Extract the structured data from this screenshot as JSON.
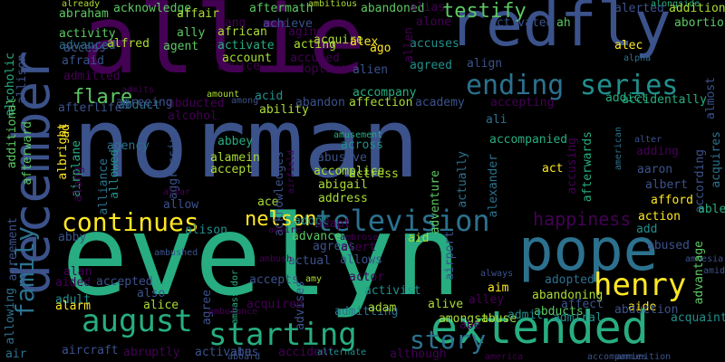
{
  "palette": {
    "background": "#000000",
    "dark_purple": "#440154",
    "purple": "#472c7a",
    "indigo": "#3b528b",
    "blue": "#2c718e",
    "teal": "#21908d",
    "sea_green": "#27ad81",
    "green": "#5cc863",
    "lime": "#aadc32",
    "yellow": "#fde725"
  },
  "words": [
    "allie",
    "norman",
    "evelyn",
    "redfly",
    "pope",
    "december",
    "extended",
    "august",
    "starting",
    "television",
    "ending",
    "series",
    "henry",
    "continues",
    "family",
    "nelson",
    "happiness",
    "story",
    "testify",
    "flare",
    "abandoned",
    "acknowledge",
    "aftermath",
    "abraham",
    "affair",
    "aang",
    "achieve",
    "african",
    "activity",
    "advanced",
    "ally",
    "aging",
    "acquire",
    "accuses",
    "alias",
    "alone",
    "activated",
    "ah",
    "abortion",
    "alerted",
    "alongside",
    "addition",
    "ambitious",
    "already",
    "allen",
    "alcoholic",
    "allison",
    "access",
    "alfred",
    "agent",
    "activate",
    "acting",
    "alex",
    "ago",
    "alec",
    "alpha",
    "almost",
    "afraid",
    "account",
    "accused",
    "alien",
    "agreed",
    "align",
    "addict",
    "accidentally",
    "admitted",
    "adoptive",
    "advice",
    "abduct",
    "admits",
    "abducted",
    "agreeing",
    "alcohol",
    "acid",
    "among",
    "amount",
    "ability",
    "afterlife",
    "additional",
    "afterward",
    "abandon",
    "affection",
    "academy",
    "accompany",
    "accepting",
    "ali",
    "albright",
    "ad",
    "airplane",
    "aggressive",
    "abbey",
    "alamein",
    "accept",
    "agency",
    "amusement",
    "across",
    "abusive",
    "accomplice",
    "actress",
    "accompanied",
    "american",
    "according",
    "acquires",
    "alter",
    "adding",
    "act",
    "aaron",
    "albert",
    "afford",
    "afterwards",
    "accusing",
    "actually",
    "alexander",
    "adventure",
    "abigail",
    "address",
    "ace",
    "allowed",
    "alliance",
    "airfield",
    "acknowledges",
    "along",
    "allow",
    "altar",
    "action",
    "able",
    "adopt",
    "admire",
    "adapt",
    "advance",
    "agrees",
    "allows",
    "alert",
    "ambrose",
    "aid",
    "add",
    "abused",
    "amid",
    "amnesia",
    "advantage",
    "agreement",
    "abby",
    "alison",
    "ambushed",
    "actual",
    "ambush",
    "ambassador",
    "airport",
    "always",
    "alan",
    "aided",
    "accepted",
    "also",
    "accepts",
    "amy",
    "actor",
    "advises",
    "activist",
    "aim",
    "alley",
    "abandoning",
    "adopted",
    "aide",
    "adult",
    "alice",
    "agree",
    "alarm",
    "acquired",
    "admitting",
    "adam",
    "alive",
    "abducts",
    "affect",
    "abduction",
    "allowing",
    "ambulance",
    "amongst",
    "abuse",
    "abe",
    "admit",
    "admiral",
    "acquaintance",
    "air",
    "aircraft",
    "abruptly",
    "activates",
    "abu",
    "accident",
    "aboard",
    "alternate",
    "although",
    "accompanies",
    "america",
    "ammunition",
    "ambition"
  ]
}
